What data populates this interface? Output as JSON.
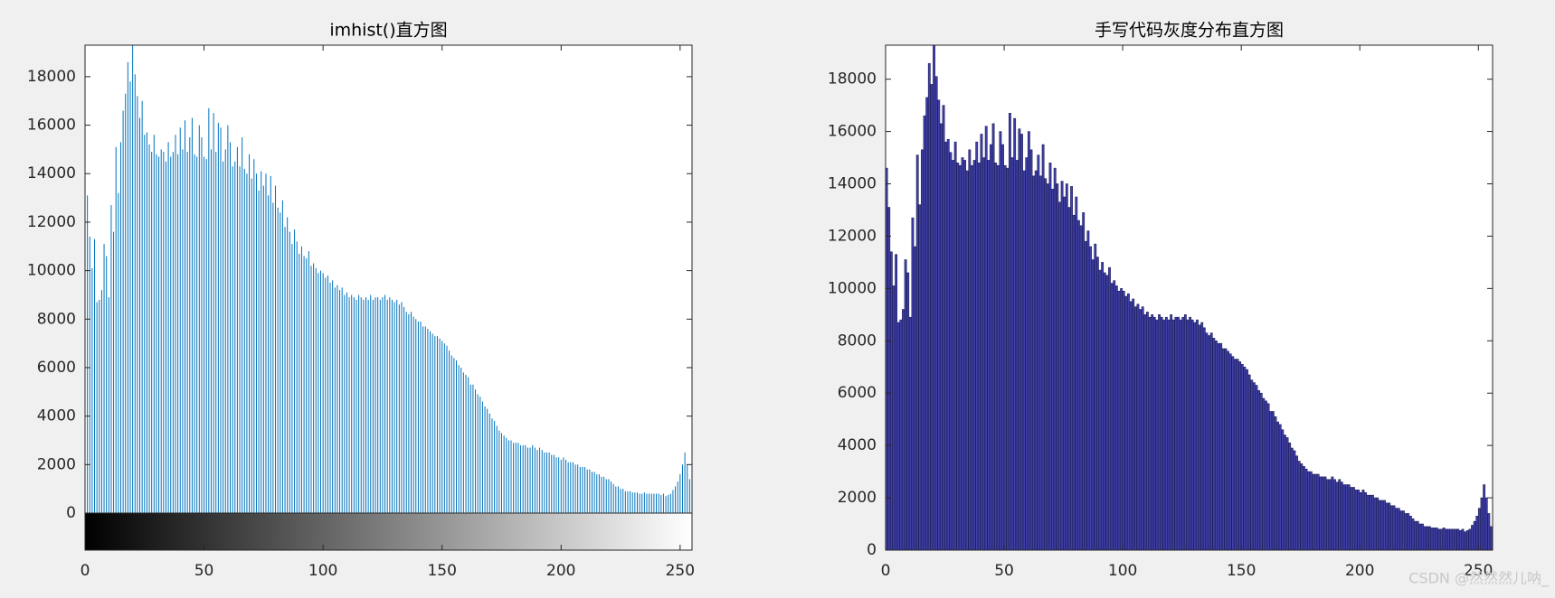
{
  "chart_data": [
    {
      "type": "stem",
      "title": "imhist()直方图",
      "color": "#0072bd",
      "colorbar": true,
      "xlim": [
        0,
        255
      ],
      "xticks": [
        0,
        50,
        100,
        150,
        200,
        250
      ],
      "ylim": [
        0,
        19300
      ],
      "yticks": [
        0,
        2000,
        4000,
        6000,
        8000,
        10000,
        12000,
        14000,
        16000,
        18000
      ],
      "x": [
        0,
        1,
        2,
        3,
        4,
        5,
        6,
        7,
        8,
        9,
        10,
        11,
        12,
        13,
        14,
        15,
        16,
        17,
        18,
        19,
        20,
        21,
        22,
        23,
        24,
        25,
        26,
        27,
        28,
        29,
        30,
        31,
        32,
        33,
        34,
        35,
        36,
        37,
        38,
        39,
        40,
        41,
        42,
        43,
        44,
        45,
        46,
        47,
        48,
        49,
        50,
        51,
        52,
        53,
        54,
        55,
        56,
        57,
        58,
        59,
        60,
        61,
        62,
        63,
        64,
        65,
        66,
        67,
        68,
        69,
        70,
        71,
        72,
        73,
        74,
        75,
        76,
        77,
        78,
        79,
        80,
        81,
        82,
        83,
        84,
        85,
        86,
        87,
        88,
        89,
        90,
        91,
        92,
        93,
        94,
        95,
        96,
        97,
        98,
        99,
        100,
        101,
        102,
        103,
        104,
        105,
        106,
        107,
        108,
        109,
        110,
        111,
        112,
        113,
        114,
        115,
        116,
        117,
        118,
        119,
        120,
        121,
        122,
        123,
        124,
        125,
        126,
        127,
        128,
        129,
        130,
        131,
        132,
        133,
        134,
        135,
        136,
        137,
        138,
        139,
        140,
        141,
        142,
        143,
        144,
        145,
        146,
        147,
        148,
        149,
        150,
        151,
        152,
        153,
        154,
        155,
        156,
        157,
        158,
        159,
        160,
        161,
        162,
        163,
        164,
        165,
        166,
        167,
        168,
        169,
        170,
        171,
        172,
        173,
        174,
        175,
        176,
        177,
        178,
        179,
        180,
        181,
        182,
        183,
        184,
        185,
        186,
        187,
        188,
        189,
        190,
        191,
        192,
        193,
        194,
        195,
        196,
        197,
        198,
        199,
        200,
        201,
        202,
        203,
        204,
        205,
        206,
        207,
        208,
        209,
        210,
        211,
        212,
        213,
        214,
        215,
        216,
        217,
        218,
        219,
        220,
        221,
        222,
        223,
        224,
        225,
        226,
        227,
        228,
        229,
        230,
        231,
        232,
        233,
        234,
        235,
        236,
        237,
        238,
        239,
        240,
        241,
        242,
        243,
        244,
        245,
        246,
        247,
        248,
        249,
        250,
        251,
        252,
        253,
        254,
        255
      ],
      "values": [
        14600,
        13100,
        11400,
        10100,
        11300,
        8700,
        8800,
        9200,
        11100,
        10600,
        8900,
        12700,
        11600,
        15100,
        13200,
        15300,
        16600,
        17300,
        18600,
        17800,
        19300,
        18100,
        17200,
        16300,
        17000,
        15600,
        15700,
        15200,
        14900,
        15600,
        14800,
        14700,
        15000,
        14900,
        14500,
        15300,
        14700,
        14900,
        15600,
        14800,
        15900,
        15000,
        16200,
        14900,
        15500,
        16300,
        14800,
        14700,
        16000,
        15500,
        14700,
        14600,
        16700,
        15000,
        16500,
        14900,
        16100,
        15900,
        14500,
        15000,
        16000,
        15300,
        14300,
        14500,
        15100,
        14300,
        15500,
        14200,
        14000,
        14800,
        13800,
        14600,
        14000,
        13300,
        14100,
        13500,
        14000,
        13100,
        13900,
        12800,
        13500,
        12600,
        12400,
        12900,
        11800,
        12200,
        11600,
        11100,
        11700,
        11200,
        10700,
        11000,
        10600,
        10500,
        10800,
        10200,
        10300,
        10100,
        9900,
        10000,
        9900,
        9700,
        9800,
        9500,
        9600,
        9300,
        9400,
        9200,
        9300,
        9000,
        9100,
        8900,
        9000,
        8900,
        8800,
        9000,
        8900,
        8800,
        8900,
        8800,
        9000,
        8800,
        8900,
        8900,
        8800,
        8900,
        9000,
        8800,
        8900,
        8800,
        8700,
        8800,
        8600,
        8700,
        8500,
        8300,
        8200,
        8300,
        8100,
        8000,
        7900,
        7900,
        7700,
        7700,
        7600,
        7500,
        7400,
        7300,
        7300,
        7200,
        7100,
        7000,
        6900,
        6700,
        6500,
        6400,
        6300,
        6100,
        6000,
        5800,
        5700,
        5600,
        5300,
        5300,
        5100,
        4900,
        4800,
        4600,
        4400,
        4300,
        4100,
        3900,
        3800,
        3600,
        3400,
        3300,
        3200,
        3100,
        3000,
        3000,
        2900,
        2900,
        2900,
        2800,
        2800,
        2800,
        2700,
        2700,
        2800,
        2700,
        2600,
        2700,
        2600,
        2500,
        2500,
        2500,
        2400,
        2400,
        2300,
        2300,
        2200,
        2300,
        2200,
        2100,
        2100,
        2100,
        2000,
        2000,
        1900,
        1900,
        1900,
        1800,
        1800,
        1700,
        1700,
        1600,
        1600,
        1500,
        1500,
        1400,
        1400,
        1300,
        1200,
        1100,
        1100,
        1000,
        1000,
        900,
        900,
        900,
        850,
        850,
        850,
        800,
        800,
        850,
        800,
        800,
        800,
        800,
        800,
        800,
        750,
        800,
        700,
        750,
        800,
        950,
        1100,
        1300,
        1600,
        2000,
        2500,
        2000,
        1400,
        900
      ]
    },
    {
      "type": "bar",
      "title": "手写代码灰度分布直方图",
      "color": "#4040a8",
      "xlim": [
        0,
        256
      ],
      "xticks": [
        0,
        50,
        100,
        150,
        200,
        250
      ],
      "ylim": [
        0,
        19300
      ],
      "yticks": [
        0,
        2000,
        4000,
        6000,
        8000,
        10000,
        12000,
        14000,
        16000,
        18000
      ],
      "x": [
        0,
        1,
        2,
        3,
        4,
        5,
        6,
        7,
        8,
        9,
        10,
        11,
        12,
        13,
        14,
        15,
        16,
        17,
        18,
        19,
        20,
        21,
        22,
        23,
        24,
        25,
        26,
        27,
        28,
        29,
        30,
        31,
        32,
        33,
        34,
        35,
        36,
        37,
        38,
        39,
        40,
        41,
        42,
        43,
        44,
        45,
        46,
        47,
        48,
        49,
        50,
        51,
        52,
        53,
        54,
        55,
        56,
        57,
        58,
        59,
        60,
        61,
        62,
        63,
        64,
        65,
        66,
        67,
        68,
        69,
        70,
        71,
        72,
        73,
        74,
        75,
        76,
        77,
        78,
        79,
        80,
        81,
        82,
        83,
        84,
        85,
        86,
        87,
        88,
        89,
        90,
        91,
        92,
        93,
        94,
        95,
        96,
        97,
        98,
        99,
        100,
        101,
        102,
        103,
        104,
        105,
        106,
        107,
        108,
        109,
        110,
        111,
        112,
        113,
        114,
        115,
        116,
        117,
        118,
        119,
        120,
        121,
        122,
        123,
        124,
        125,
        126,
        127,
        128,
        129,
        130,
        131,
        132,
        133,
        134,
        135,
        136,
        137,
        138,
        139,
        140,
        141,
        142,
        143,
        144,
        145,
        146,
        147,
        148,
        149,
        150,
        151,
        152,
        153,
        154,
        155,
        156,
        157,
        158,
        159,
        160,
        161,
        162,
        163,
        164,
        165,
        166,
        167,
        168,
        169,
        170,
        171,
        172,
        173,
        174,
        175,
        176,
        177,
        178,
        179,
        180,
        181,
        182,
        183,
        184,
        185,
        186,
        187,
        188,
        189,
        190,
        191,
        192,
        193,
        194,
        195,
        196,
        197,
        198,
        199,
        200,
        201,
        202,
        203,
        204,
        205,
        206,
        207,
        208,
        209,
        210,
        211,
        212,
        213,
        214,
        215,
        216,
        217,
        218,
        219,
        220,
        221,
        222,
        223,
        224,
        225,
        226,
        227,
        228,
        229,
        230,
        231,
        232,
        233,
        234,
        235,
        236,
        237,
        238,
        239,
        240,
        241,
        242,
        243,
        244,
        245,
        246,
        247,
        248,
        249,
        250,
        251,
        252,
        253,
        254,
        255
      ],
      "values": [
        14600,
        13100,
        11400,
        10100,
        11300,
        8700,
        8800,
        9200,
        11100,
        10600,
        8900,
        12700,
        11600,
        15100,
        13200,
        15300,
        16600,
        17300,
        18600,
        17800,
        19300,
        18100,
        17200,
        16300,
        17000,
        15600,
        15700,
        15200,
        14900,
        15600,
        14800,
        14700,
        15000,
        14900,
        14500,
        15300,
        14700,
        14900,
        15600,
        14800,
        15900,
        15000,
        16200,
        14900,
        15500,
        16300,
        14800,
        14700,
        16000,
        15500,
        14700,
        14600,
        16700,
        15000,
        16500,
        14900,
        16100,
        15900,
        14500,
        15000,
        16000,
        15300,
        14300,
        14500,
        15100,
        14300,
        15500,
        14200,
        14000,
        14800,
        13800,
        14600,
        14000,
        13300,
        14100,
        13500,
        14000,
        13100,
        13900,
        12800,
        13500,
        12600,
        12400,
        12900,
        11800,
        12200,
        11600,
        11100,
        11700,
        11200,
        10700,
        11000,
        10600,
        10500,
        10800,
        10200,
        10300,
        10100,
        9900,
        10000,
        9900,
        9700,
        9800,
        9500,
        9600,
        9300,
        9400,
        9200,
        9300,
        9000,
        9100,
        8900,
        9000,
        8900,
        8800,
        9000,
        8900,
        8800,
        8900,
        8800,
        9000,
        8800,
        8900,
        8900,
        8800,
        8900,
        9000,
        8800,
        8900,
        8800,
        8700,
        8800,
        8600,
        8700,
        8500,
        8300,
        8200,
        8300,
        8100,
        8000,
        7900,
        7900,
        7700,
        7700,
        7600,
        7500,
        7400,
        7300,
        7300,
        7200,
        7100,
        7000,
        6900,
        6700,
        6500,
        6400,
        6300,
        6100,
        6000,
        5800,
        5700,
        5600,
        5300,
        5300,
        5100,
        4900,
        4800,
        4600,
        4400,
        4300,
        4100,
        3900,
        3800,
        3600,
        3400,
        3300,
        3200,
        3100,
        3000,
        3000,
        2900,
        2900,
        2900,
        2800,
        2800,
        2800,
        2700,
        2700,
        2800,
        2700,
        2600,
        2700,
        2600,
        2500,
        2500,
        2500,
        2400,
        2400,
        2300,
        2300,
        2200,
        2300,
        2200,
        2100,
        2100,
        2100,
        2000,
        2000,
        1900,
        1900,
        1900,
        1800,
        1800,
        1700,
        1700,
        1600,
        1600,
        1500,
        1500,
        1400,
        1400,
        1300,
        1200,
        1100,
        1100,
        1000,
        1000,
        900,
        900,
        900,
        850,
        850,
        850,
        800,
        800,
        850,
        800,
        800,
        800,
        800,
        800,
        800,
        750,
        800,
        700,
        750,
        800,
        950,
        1100,
        1300,
        1600,
        2000,
        2500,
        2000,
        1400,
        900
      ]
    }
  ],
  "watermark": "CSDN @然然然儿呐_"
}
